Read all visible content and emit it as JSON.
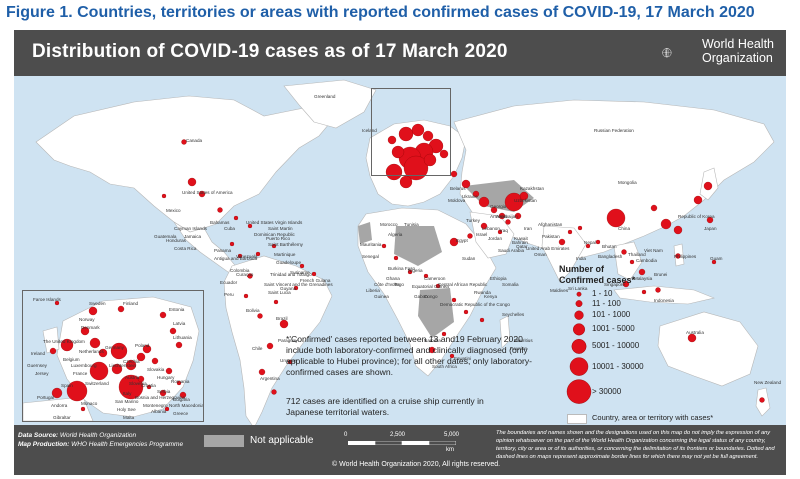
{
  "figure_title": "Figure 1. Countries, territories or areas with reported confirmed cases of COVID-19, 17 March 2020",
  "banner_title": "Distribution of COVID-19  cases as of 17 March 2020",
  "who": {
    "line1": "World Health",
    "line2": "Organization"
  },
  "colors": {
    "banner": "#4d4d4d",
    "ocean": "#cfe3f2",
    "land": "#ffffff",
    "not_applicable": "#a6a6a6",
    "bubble": "#e0101b",
    "title": "#1f5fa8"
  },
  "footer": {
    "source_label": "Data Source:",
    "source_value": "World Health Organization",
    "production_label": "Map Production:",
    "production_value": "WHO Health Emergencies Programme",
    "not_applicable": "Not applicable",
    "copyright": "© World Health Organization 2020, All rights reserved.",
    "scale_labels": [
      "0",
      "2,500",
      "5,000"
    ],
    "scale_unit": "km",
    "disclaimer": "The boundaries and names shown and the designations used on this map do not imply the expression of any opinion whatsoever on the part of the World Health Organization concerning the legal status of any country, territory, city or area or of its authorities, or concerning the delimitation of its frontiers or boundaries. Dotted and dashed lines on maps represent approximate border lines for which there may not yet be full agreement."
  },
  "notes": {
    "confirmed": "*'Confirmed' cases reported between 13 and19 February 2020 include both laboratory-confirmed and clinically diagnosed (only applicable to Hubei province); for all other dates, only laboratory-confirmed cases are shown.",
    "ship": "712 cases are identified on a cruise ship currently in Japanese territorial waters."
  },
  "legend": {
    "title_line1": "Number of",
    "title_line2": "Confirmed cases",
    "classes": [
      "1 - 10",
      "11 - 100",
      "101 - 1000",
      "1001 - 5000",
      "5001 - 10000",
      "10001 - 30000",
      "> 30000"
    ],
    "territory": "Country, area or territory with cases*"
  },
  "labels": [
    "Canada",
    "United States of America",
    "Mexico",
    "Bahamas",
    "Cuba",
    "Cayman Islands",
    "Jamaica",
    "Honduras",
    "Costa Rica",
    "Panama",
    "Colombia",
    "Ecuador",
    "Peru",
    "Bolivia",
    "Brazil",
    "Chile",
    "Argentina",
    "Paraguay",
    "Uruguay",
    "French Guiana",
    "Venezuela",
    "Guatemala",
    "Dominican Republic",
    "Puerto Rico",
    "Saint Martin",
    "Saint Barthélemy",
    "Martinique",
    "Guadeloupe",
    "Antigua and Barbuda",
    "Trinidad and Tobago",
    "Saint Vincent and the Grenadines",
    "Saint Lucia",
    "United States Virgin Islands",
    "Curaçao",
    "Guyana",
    "Suriname",
    "French Polynesia",
    "Greenland",
    "Iceland",
    "Russian Federation",
    "Kazakhstan",
    "Mongolia",
    "China",
    "Republic of Korea",
    "Japan",
    "Philippines",
    "Guam",
    "Viet Nam",
    "Cambodia",
    "Thailand",
    "Malaysia",
    "Singapore",
    "Brunei",
    "Indonesia",
    "India",
    "Nepal",
    "Bhutan",
    "Sri Lanka",
    "Maldives",
    "Bangladesh",
    "Pakistan",
    "Afghanistan",
    "Iran",
    "Iraq",
    "Kuwait",
    "Bahrain",
    "Qatar",
    "United Arab Emirates",
    "Oman",
    "Saudi Arabia",
    "Jordan",
    "Lebanon",
    "Israel",
    "Egypt",
    "Sudan",
    "Ethiopia",
    "Kenya",
    "Somalia",
    "Rwanda",
    "Seychelles",
    "Mauritius",
    "Reunion",
    "South Africa",
    "Namibia",
    "Eswatini",
    "Democratic Republic of the Congo",
    "Congo",
    "Gabon",
    "Equatorial Guinea",
    "Cameroon",
    "Central African Republic",
    "Nigeria",
    "Togo",
    "Ghana",
    "Côte d'Ivoire",
    "Liberia",
    "Guinea",
    "Burkina Faso",
    "Senegal",
    "Mauritania",
    "Morocco",
    "Algeria",
    "Tunisia",
    "Turkey",
    "Georgia",
    "Azerbaijan",
    "Armenia",
    "Uzbekistan",
    "Ukraine",
    "Moldova",
    "Belarus",
    "Australia",
    "New Zealand",
    "French Polynesia"
  ],
  "inset_labels": [
    "Faroe Islands",
    "Sweden",
    "Finland",
    "Norway",
    "Estonia",
    "Latvia",
    "Lithuania",
    "Denmark",
    "The United Kingdom",
    "Ireland",
    "Netherlands",
    "Belgium",
    "Germany",
    "Poland",
    "France",
    "Switzerland",
    "Austria",
    "Czechia",
    "Slovakia",
    "Hungary",
    "Romania",
    "Italy",
    "Spain",
    "Portugal",
    "Andorra",
    "Monaco",
    "San Marino",
    "Holy See",
    "Croatia",
    "Slovenia",
    "Bosnia and Herzegovina",
    "Serbia",
    "Montenegro",
    "Albania",
    "North Macedonia",
    "Greece",
    "Bulgaria",
    "Malta",
    "Gibraltar",
    "Guernsey",
    "Jersey",
    "Luxembourg",
    "Liechtenstein"
  ]
}
